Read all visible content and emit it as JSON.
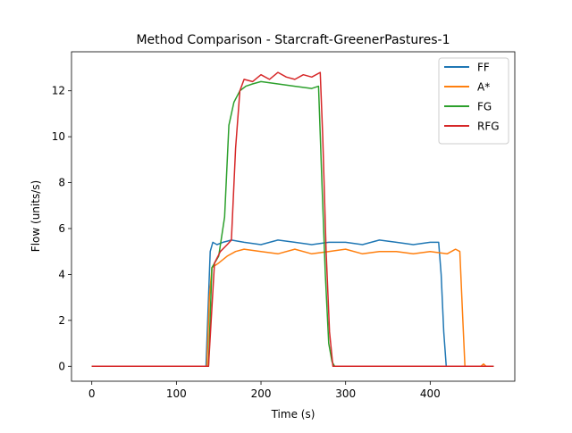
{
  "chart_data": {
    "type": "line",
    "title": "Method Comparison - Starcraft-GreenerPastures-1",
    "xlabel": "Time (s)",
    "ylabel": "Flow (units/s)",
    "xlim": [
      -24,
      500
    ],
    "ylim": [
      -0.65,
      13.7
    ],
    "xticks": [
      0,
      100,
      200,
      300,
      400
    ],
    "yticks": [
      0,
      2,
      4,
      6,
      8,
      10,
      12
    ],
    "grid": false,
    "legend": "top-right",
    "series": [
      {
        "name": "FF",
        "color": "#1f77b4",
        "x": [
          0,
          135,
          138,
          140,
          143,
          148,
          155,
          165,
          180,
          200,
          220,
          240,
          260,
          280,
          300,
          320,
          340,
          360,
          380,
          400,
          410,
          413,
          416,
          419,
          475
        ],
        "y": [
          0,
          0,
          3.0,
          5.0,
          5.4,
          5.3,
          5.4,
          5.5,
          5.4,
          5.3,
          5.5,
          5.4,
          5.3,
          5.4,
          5.4,
          5.3,
          5.5,
          5.4,
          5.3,
          5.4,
          5.4,
          4.0,
          1.5,
          0,
          0
        ]
      },
      {
        "name": "A*",
        "color": "#ff7f0e",
        "x": [
          0,
          136,
          139,
          142,
          150,
          160,
          170,
          180,
          200,
          220,
          240,
          260,
          280,
          300,
          320,
          340,
          360,
          380,
          400,
          420,
          430,
          435,
          438,
          441,
          460,
          463,
          466,
          475
        ],
        "y": [
          0,
          0,
          3.0,
          4.3,
          4.5,
          4.8,
          5.0,
          5.1,
          5.0,
          4.9,
          5.1,
          4.9,
          5.0,
          5.1,
          4.9,
          5.0,
          5.0,
          4.9,
          5.0,
          4.9,
          5.1,
          5.0,
          2.5,
          0,
          0,
          0.1,
          0,
          0
        ]
      },
      {
        "name": "FG",
        "color": "#2ca02c",
        "x": [
          0,
          138,
          142,
          150,
          157,
          162,
          168,
          175,
          182,
          190,
          200,
          220,
          240,
          260,
          268,
          272,
          276,
          280,
          284,
          287,
          475
        ],
        "y": [
          0,
          0,
          4.3,
          4.8,
          6.5,
          10.5,
          11.5,
          12.0,
          12.2,
          12.3,
          12.4,
          12.3,
          12.2,
          12.1,
          12.2,
          8.0,
          4.0,
          1.0,
          0.2,
          0,
          0
        ]
      },
      {
        "name": "RFG",
        "color": "#d62728",
        "x": [
          0,
          138,
          145,
          152,
          160,
          165,
          170,
          175,
          180,
          190,
          200,
          210,
          220,
          230,
          240,
          250,
          260,
          270,
          273,
          277,
          281,
          285,
          475
        ],
        "y": [
          0,
          0,
          4.5,
          5.0,
          5.3,
          5.5,
          9.5,
          12.0,
          12.5,
          12.4,
          12.7,
          12.5,
          12.8,
          12.6,
          12.5,
          12.7,
          12.6,
          12.8,
          10.0,
          5.0,
          1.5,
          0,
          0
        ]
      }
    ]
  }
}
